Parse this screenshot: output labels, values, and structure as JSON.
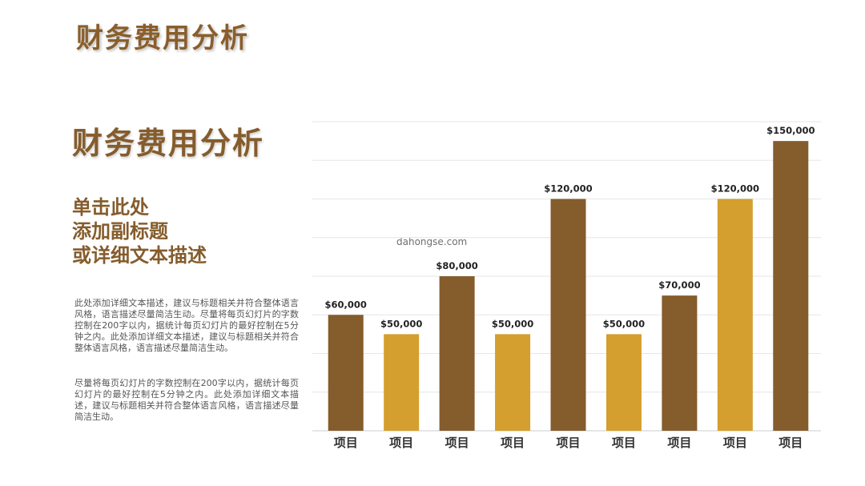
{
  "header": {
    "title": "财务费用分析"
  },
  "content": {
    "section_title": "财务费用分析",
    "subtitle_lines": [
      "单击此处",
      "添加副标题",
      "或详细文本描述"
    ],
    "paragraph1": "此处添加详细文本描述，建议与标题相关并符合整体语言风格，语言描述尽量简洁生动。尽量将每页幻灯片的字数控制在200字以内，据统计每页幻灯片的最好控制在5分钟之内。此处添加详细文本描述，建议与标题相关并符合整体语言风格，语言描述尽量简洁生动。",
    "paragraph2": "尽量将每页幻灯片的字数控制在200字以内，据统计每页幻灯片的最好控制在5分钟之内。此处添加详细文本描述，建议与标题相关并符合整体语言风格，语言描述尽量简洁生动。"
  },
  "watermark": "dahongse.com",
  "colors": {
    "brown": "#855c2c",
    "gold": "#d49f2e",
    "grid": "#e6e6e6",
    "axis": "#cccccc"
  },
  "chart_data": {
    "type": "bar",
    "categories": [
      "项目",
      "项目",
      "项目",
      "项目",
      "项目",
      "项目",
      "项目",
      "项目",
      "项目"
    ],
    "values": [
      60000,
      50000,
      80000,
      50000,
      120000,
      50000,
      70000,
      120000,
      150000
    ],
    "data_labels": [
      "$60,000",
      "$50,000",
      "$80,000",
      "$50,000",
      "$120,000",
      "$50,000",
      "$70,000",
      "$120,000",
      "$150,000"
    ],
    "bar_colors": [
      "brown",
      "gold",
      "brown",
      "gold",
      "brown",
      "gold",
      "brown",
      "gold",
      "brown"
    ],
    "ylim": [
      0,
      160000
    ],
    "grid_step": 20000,
    "grid": true,
    "legend": "none"
  }
}
